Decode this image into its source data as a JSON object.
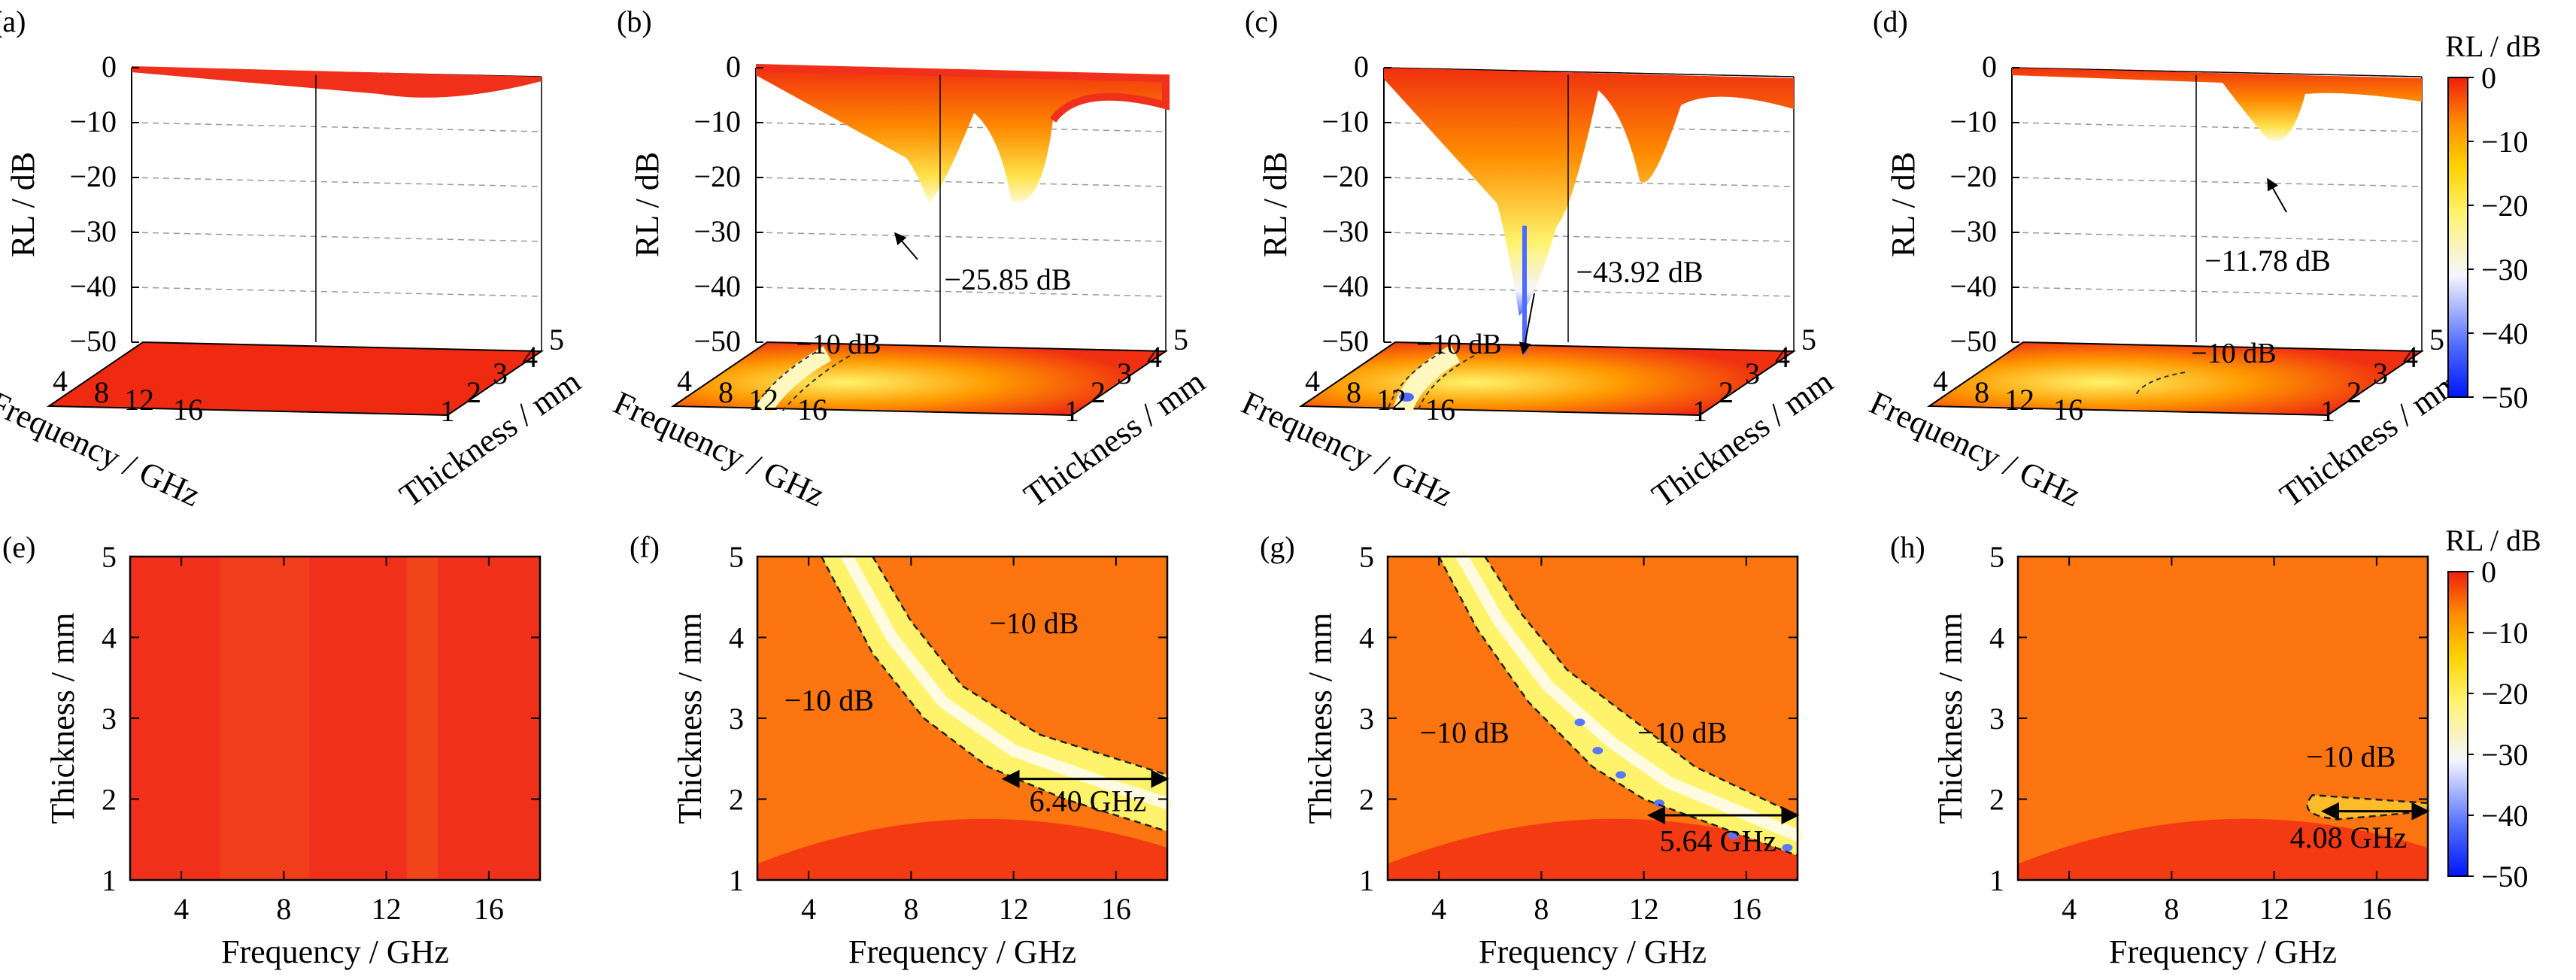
{
  "figure": {
    "panel_labels": [
      "(a)",
      "(b)",
      "(c)",
      "(d)",
      "(e)",
      "(f)",
      "(g)",
      "(h)"
    ],
    "colorbar": {
      "title": "RL / dB",
      "ticks": [
        "0",
        "−10",
        "−20",
        "−30",
        "−40",
        "−50"
      ],
      "colors": [
        "#0015ff",
        "#4d6bff",
        "#f5f5ff",
        "#fff36b",
        "#ffd200",
        "#ff8c00",
        "#f01e0a"
      ]
    },
    "surface": {
      "zlabel": "RL / dB",
      "xlabel": "Frequency / GHz",
      "ylabel": "Thickness / mm",
      "zticks": [
        "0",
        "−10",
        "−20",
        "−30",
        "−40",
        "−50"
      ],
      "xticks": [
        "4",
        "8",
        "12",
        "16"
      ],
      "yticks": [
        "1",
        "2",
        "3",
        "4",
        "5"
      ]
    },
    "contour": {
      "xlabel": "Frequency / GHz",
      "ylabel": "Thickness / mm",
      "xticks": [
        "4",
        "8",
        "12",
        "16"
      ],
      "yticks": [
        "1",
        "2",
        "3",
        "4",
        "5"
      ]
    }
  },
  "chart_data": [
    {
      "panel": "(a)",
      "type": "surface",
      "xlabel": "Frequency / GHz",
      "ylabel": "Thickness / mm",
      "zlabel": "RL / dB",
      "xlim": [
        2,
        18
      ],
      "ylim": [
        1,
        5
      ],
      "zlim": [
        -50,
        0
      ],
      "annotations": []
    },
    {
      "panel": "(b)",
      "type": "surface",
      "xlabel": "Frequency / GHz",
      "ylabel": "Thickness / mm",
      "zlabel": "RL / dB",
      "xlim": [
        2,
        18
      ],
      "ylim": [
        1,
        5
      ],
      "zlim": [
        -50,
        0
      ],
      "min_rl": -25.85,
      "annotations": [
        "−25.85 dB",
        "−10 dB"
      ]
    },
    {
      "panel": "(c)",
      "type": "surface",
      "xlabel": "Frequency / GHz",
      "ylabel": "Thickness / mm",
      "zlabel": "RL / dB",
      "xlim": [
        2,
        18
      ],
      "ylim": [
        1,
        5
      ],
      "zlim": [
        -50,
        0
      ],
      "min_rl": -43.92,
      "annotations": [
        "−43.92 dB",
        "−10 dB"
      ]
    },
    {
      "panel": "(d)",
      "type": "surface",
      "xlabel": "Frequency / GHz",
      "ylabel": "Thickness / mm",
      "zlabel": "RL / dB",
      "xlim": [
        2,
        18
      ],
      "ylim": [
        1,
        5
      ],
      "zlim": [
        -50,
        0
      ],
      "min_rl": -11.78,
      "annotations": [
        "−11.78 dB",
        "−10 dB"
      ]
    },
    {
      "panel": "(e)",
      "type": "heatmap",
      "xlabel": "Frequency / GHz",
      "ylabel": "Thickness / mm",
      "xlim": [
        2,
        18
      ],
      "ylim": [
        1,
        5
      ],
      "annotations": []
    },
    {
      "panel": "(f)",
      "type": "heatmap",
      "xlabel": "Frequency / GHz",
      "ylabel": "Thickness / mm",
      "xlim": [
        2,
        18
      ],
      "ylim": [
        1,
        5
      ],
      "eab_ghz": 6.4,
      "eab_thickness_mm": 2.25,
      "annotations": [
        "−10 dB",
        "−10 dB",
        "6.40 GHz"
      ]
    },
    {
      "panel": "(g)",
      "type": "heatmap",
      "xlabel": "Frequency / GHz",
      "ylabel": "Thickness / mm",
      "xlim": [
        2,
        18
      ],
      "ylim": [
        1,
        5
      ],
      "eab_ghz": 5.64,
      "eab_thickness_mm": 1.8,
      "annotations": [
        "−10 dB",
        "−10 dB",
        "5.64 GHz"
      ]
    },
    {
      "panel": "(h)",
      "type": "heatmap",
      "xlabel": "Frequency / GHz",
      "ylabel": "Thickness / mm",
      "xlim": [
        2,
        18
      ],
      "ylim": [
        1,
        5
      ],
      "eab_ghz": 4.08,
      "eab_thickness_mm": 1.85,
      "annotations": [
        "−10 dB",
        "4.08 GHz"
      ]
    }
  ]
}
